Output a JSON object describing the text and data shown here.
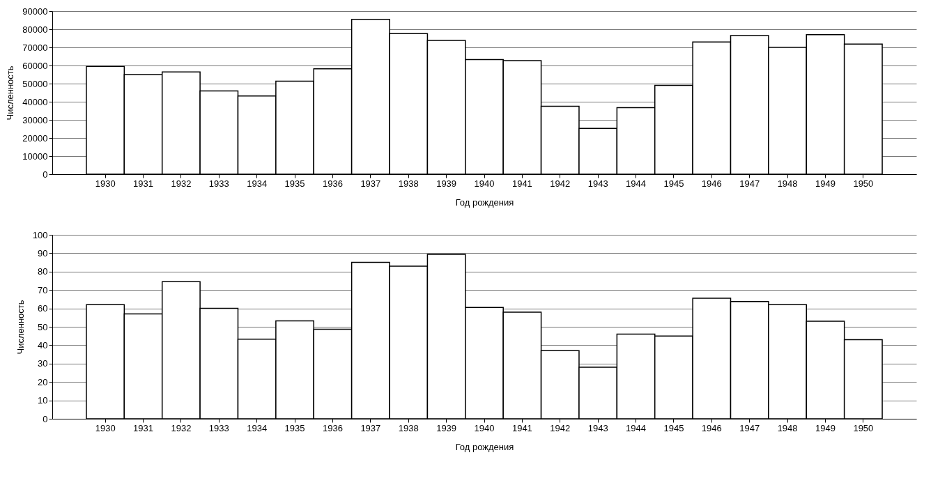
{
  "chart_data": [
    {
      "type": "bar",
      "xlabel": "Год рождения",
      "ylabel": "Численность",
      "categories": [
        "1930",
        "1931",
        "1932",
        "1933",
        "1934",
        "1935",
        "1936",
        "1937",
        "1938",
        "1939",
        "1940",
        "1941",
        "1942",
        "1943",
        "1944",
        "1945",
        "1946",
        "1947",
        "1948",
        "1949",
        "1950"
      ],
      "color": "#ffffff",
      "values": [
        59500,
        55000,
        56400,
        46000,
        43200,
        51300,
        58200,
        85500,
        77600,
        73800,
        63300,
        62700,
        37500,
        25300,
        36700,
        49000,
        73000,
        76500,
        70000,
        77000,
        71800
      ],
      "ylim": [
        0,
        90000
      ],
      "yticks": [
        0,
        10000,
        20000,
        30000,
        40000,
        50000,
        60000,
        70000,
        80000,
        90000
      ],
      "grid": "y"
    },
    {
      "type": "bar",
      "xlabel": "Год рождения",
      "ylabel": "Численность",
      "categories": [
        "1930",
        "1931",
        "1932",
        "1933",
        "1934",
        "1935",
        "1936",
        "1937",
        "1938",
        "1939",
        "1940",
        "1941",
        "1942",
        "1943",
        "1944",
        "1945",
        "1946",
        "1947",
        "1948",
        "1949",
        "1950"
      ],
      "color": "#ffffff",
      "values": [
        62,
        57,
        74.5,
        60,
        43.3,
        53.2,
        48.7,
        85,
        83,
        89.4,
        60.5,
        58,
        37,
        28,
        46,
        45,
        65.5,
        63.7,
        62,
        53,
        43
      ],
      "ylim": [
        0,
        100
      ],
      "yticks": [
        0,
        10,
        20,
        30,
        40,
        50,
        60,
        70,
        80,
        90,
        100
      ],
      "grid": "y"
    }
  ]
}
